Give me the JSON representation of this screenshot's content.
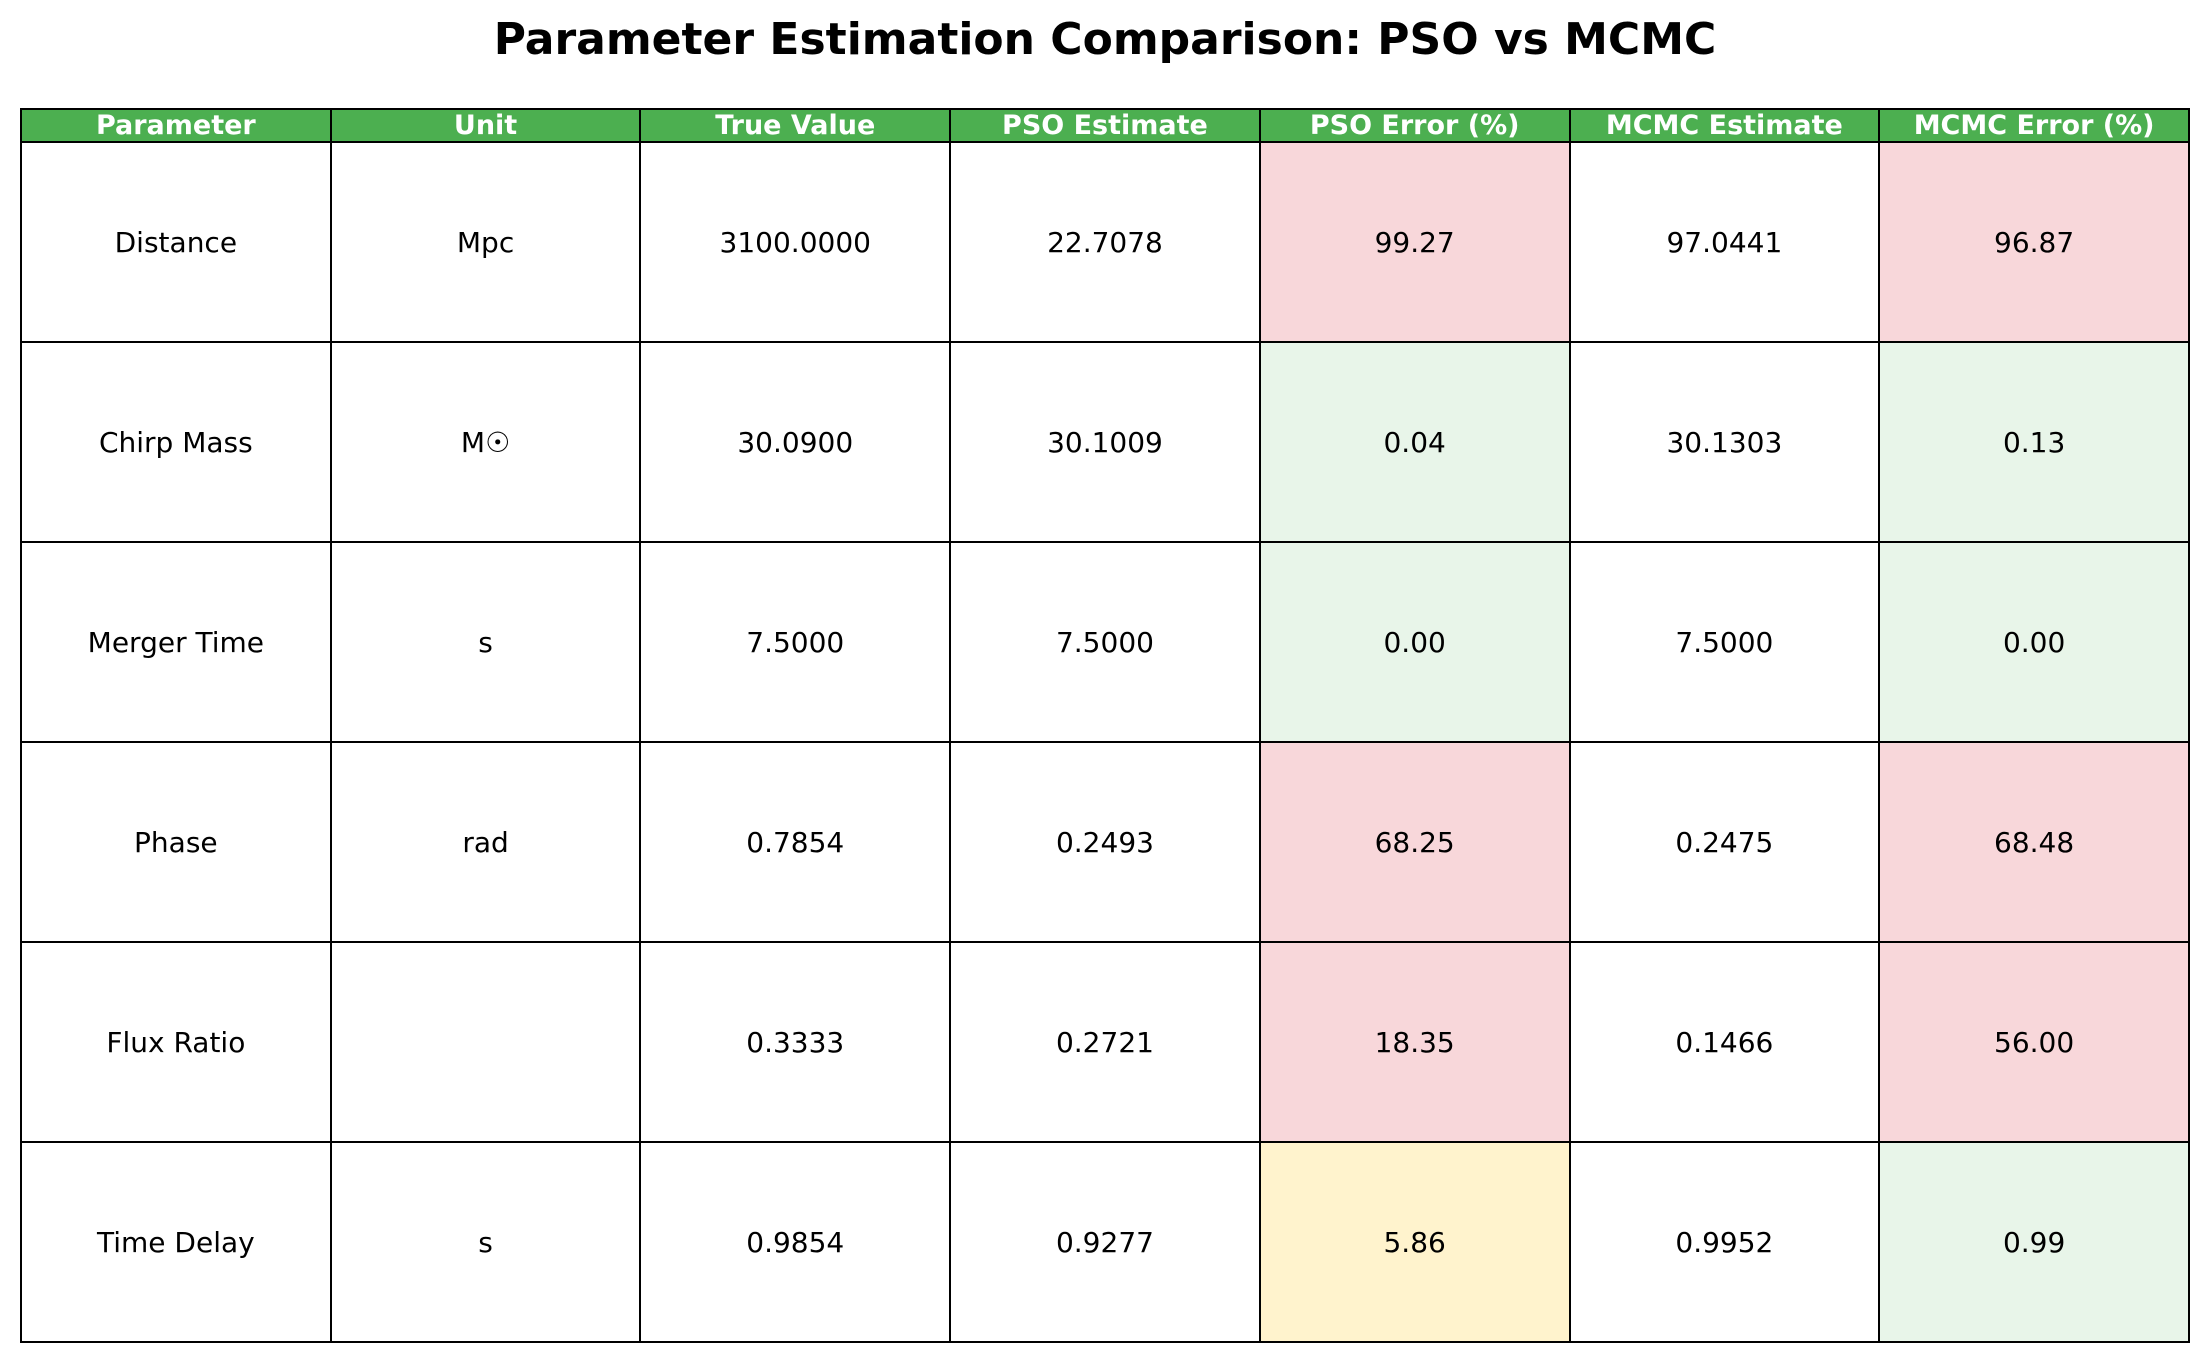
{
  "chart_data": {
    "type": "table",
    "title": "Parameter Estimation Comparison: PSO vs MCMC",
    "header_color": "#4caf50",
    "columns": [
      "Parameter",
      "Unit",
      "True Value",
      "PSO Estimate",
      "PSO Error (%)",
      "MCMC Estimate",
      "MCMC Error (%)"
    ],
    "rows": [
      {
        "parameter": "Distance",
        "unit": "Mpc",
        "true_value": "3100.0000",
        "pso_estimate": "22.7078",
        "pso_error": "99.27",
        "mcmc_estimate": "97.0441",
        "mcmc_error": "96.87",
        "pso_error_color": "#f8d7da",
        "mcmc_error_color": "#f8d7da"
      },
      {
        "parameter": "Chirp Mass",
        "unit": "M☉",
        "true_value": "30.0900",
        "pso_estimate": "30.1009",
        "pso_error": "0.04",
        "mcmc_estimate": "30.1303",
        "mcmc_error": "0.13",
        "pso_error_color": "#e8f5e9",
        "mcmc_error_color": "#e8f5e9"
      },
      {
        "parameter": "Merger Time",
        "unit": "s",
        "true_value": "7.5000",
        "pso_estimate": "7.5000",
        "pso_error": "0.00",
        "mcmc_estimate": "7.5000",
        "mcmc_error": "0.00",
        "pso_error_color": "#e8f5e9",
        "mcmc_error_color": "#e8f5e9"
      },
      {
        "parameter": "Phase",
        "unit": "rad",
        "true_value": "0.7854",
        "pso_estimate": "0.2493",
        "pso_error": "68.25",
        "mcmc_estimate": "0.2475",
        "mcmc_error": "68.48",
        "pso_error_color": "#f8d7da",
        "mcmc_error_color": "#f8d7da"
      },
      {
        "parameter": "Flux Ratio",
        "unit": "",
        "true_value": "0.3333",
        "pso_estimate": "0.2721",
        "pso_error": "18.35",
        "mcmc_estimate": "0.1466",
        "mcmc_error": "56.00",
        "pso_error_color": "#f8d7da",
        "mcmc_error_color": "#f8d7da"
      },
      {
        "parameter": "Time Delay",
        "unit": "s",
        "true_value": "0.9854",
        "pso_estimate": "0.9277",
        "pso_error": "5.86",
        "mcmc_estimate": "0.9952",
        "mcmc_error": "0.99",
        "pso_error_color": "#fff3cd",
        "mcmc_error_color": "#e8f5e9"
      }
    ]
  }
}
